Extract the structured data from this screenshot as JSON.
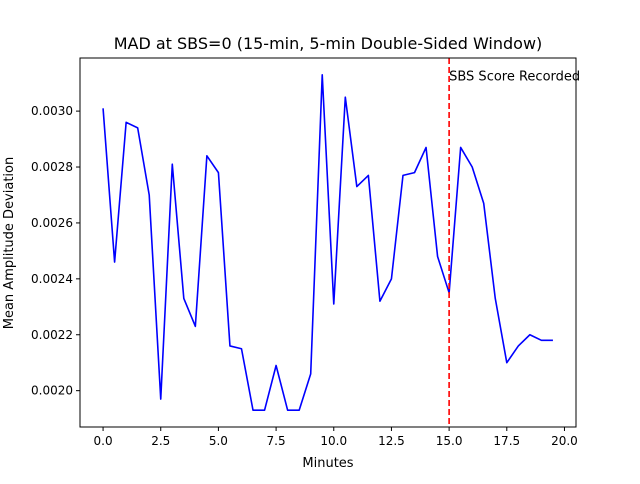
{
  "chart_data": {
    "type": "line",
    "title": "MAD at SBS=0 (15-min, 5-min Double-Sided Window)",
    "xlabel": "Minutes",
    "ylabel": "Mean Amplitude Deviation",
    "xlim": [
      -1.0,
      20.5
    ],
    "ylim": [
      0.00187,
      0.00319
    ],
    "xticks": [
      0.0,
      2.5,
      5.0,
      7.5,
      10.0,
      12.5,
      15.0,
      17.5,
      20.0
    ],
    "xtick_labels": [
      "0.0",
      "2.5",
      "5.0",
      "7.5",
      "10.0",
      "12.5",
      "15.0",
      "17.5",
      "20.0"
    ],
    "yticks": [
      0.002,
      0.0022,
      0.0024,
      0.0026,
      0.0028,
      0.003
    ],
    "ytick_labels": [
      "0.0020",
      "0.0022",
      "0.0024",
      "0.0026",
      "0.0028",
      "0.0030"
    ],
    "grid": false,
    "series": [
      {
        "color": "#0000ff",
        "x": [
          0.0,
          0.5,
          1.0,
          1.5,
          2.0,
          2.5,
          3.0,
          3.5,
          4.0,
          4.5,
          5.0,
          5.5,
          6.0,
          6.5,
          7.0,
          7.5,
          8.0,
          8.5,
          9.0,
          9.5,
          10.0,
          10.5,
          11.0,
          11.5,
          12.0,
          12.5,
          13.0,
          13.5,
          14.0,
          14.5,
          15.0,
          15.5,
          16.0,
          16.5,
          17.0,
          17.5,
          18.0,
          18.5,
          19.0,
          19.5
        ],
        "y": [
          0.00301,
          0.00246,
          0.00296,
          0.00294,
          0.0027,
          0.00197,
          0.00281,
          0.00233,
          0.00223,
          0.00284,
          0.00278,
          0.00216,
          0.00215,
          0.00193,
          0.00193,
          0.00209,
          0.00193,
          0.00193,
          0.00206,
          0.00313,
          0.00231,
          0.00305,
          0.00273,
          0.00277,
          0.00232,
          0.0024,
          0.00277,
          0.00278,
          0.00287,
          0.00248,
          0.00235,
          0.00287,
          0.0028,
          0.00267,
          0.00233,
          0.0021,
          0.00216,
          0.0022,
          0.00218,
          0.00218
        ]
      }
    ],
    "vline": {
      "x": 15.0,
      "color": "#ff0000",
      "style": "dashed"
    },
    "annotation": {
      "text": "SBS Score Recorded",
      "x": 15.0,
      "y": 0.00311
    }
  }
}
